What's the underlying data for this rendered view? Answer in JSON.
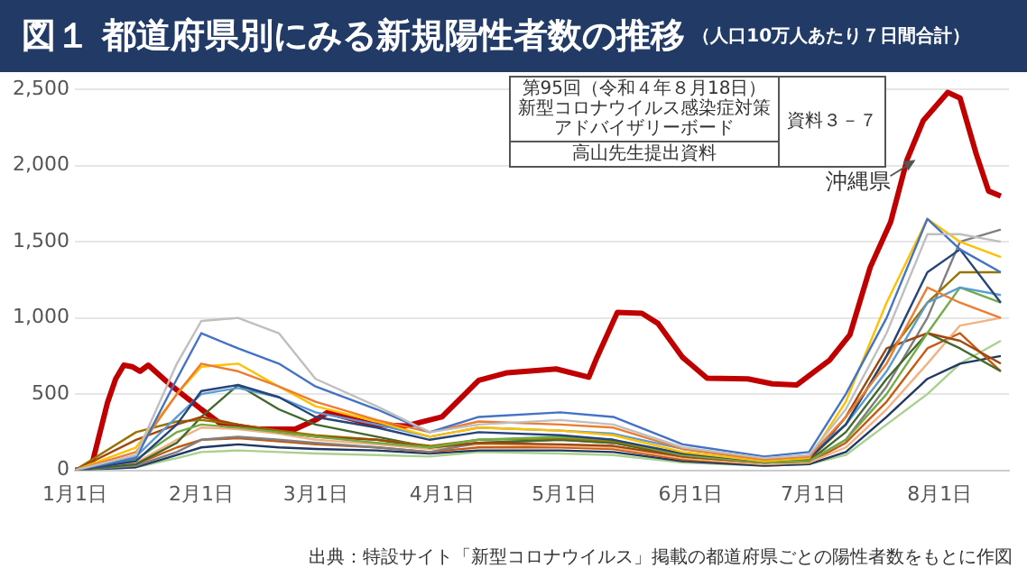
{
  "chart_data": {
    "type": "line",
    "title": "図１ 都道府県別にみる新規陽性者数の推移",
    "subtitle": "（人口10万人あたり７日間合計）",
    "x": [
      "--01-01",
      "--01-16",
      "--01-26",
      "--02-01",
      "--02-10",
      "--02-20",
      "--03-01",
      "--03-16",
      "--03-29",
      "--04-10",
      "--04-30",
      "--05-13",
      "--05-30",
      "--06-19",
      "--06-30",
      "--07-09",
      "--07-19",
      "--07-29",
      "--08-06",
      "--08-16"
    ],
    "xlim": [
      "--01-01",
      "--08-18"
    ],
    "xticks": [
      {
        "value": "--01-01",
        "label": "1月1日"
      },
      {
        "value": "--02-01",
        "label": "2月1日"
      },
      {
        "value": "--03-01",
        "label": "3月1日"
      },
      {
        "value": "--04-01",
        "label": "4月1日"
      },
      {
        "value": "--05-01",
        "label": "5月1日"
      },
      {
        "value": "--06-01",
        "label": "6月1日"
      },
      {
        "value": "--07-01",
        "label": "7月1日"
      },
      {
        "value": "--08-01",
        "label": "8月1日"
      }
    ],
    "ylim": [
      0,
      2500
    ],
    "yticks": [
      {
        "value": 0,
        "label": "0"
      },
      {
        "value": 500,
        "label": "500"
      },
      {
        "value": 1000,
        "label": "1,000"
      },
      {
        "value": 1500,
        "label": "1,500"
      },
      {
        "value": 2000,
        "label": "2,000"
      },
      {
        "value": 2500,
        "label": "2,500"
      }
    ],
    "grid": "y",
    "legend": false,
    "marker": "none",
    "line_style": "solid",
    "series": [
      {
        "color": "#bfbfbf",
        "values": [
          0,
          100,
          700,
          980,
          1000,
          900,
          600,
          420,
          250,
          300,
          330,
          300,
          150,
          80,
          100,
          400,
          900,
          1550,
          1550,
          1500
        ]
      },
      {
        "color": "#4472c4",
        "values": [
          0,
          80,
          600,
          900,
          800,
          700,
          550,
          400,
          250,
          350,
          380,
          350,
          170,
          90,
          120,
          500,
          1000,
          1650,
          1450,
          1300
        ]
      },
      {
        "color": "#ed7d31",
        "values": [
          0,
          120,
          500,
          700,
          650,
          550,
          450,
          330,
          250,
          320,
          300,
          280,
          140,
          70,
          90,
          350,
          700,
          1200,
          1100,
          1000
        ]
      },
      {
        "color": "#ffc000",
        "values": [
          0,
          150,
          500,
          680,
          700,
          550,
          420,
          320,
          220,
          280,
          260,
          230,
          120,
          60,
          80,
          450,
          1100,
          1650,
          1500,
          1400
        ]
      },
      {
        "color": "#264478",
        "values": [
          0,
          60,
          300,
          520,
          560,
          480,
          350,
          280,
          200,
          250,
          230,
          200,
          110,
          60,
          80,
          300,
          750,
          1300,
          1450,
          1100
        ]
      },
      {
        "color": "#5b9bd5",
        "values": [
          0,
          90,
          350,
          500,
          540,
          480,
          380,
          300,
          220,
          280,
          260,
          240,
          140,
          70,
          100,
          300,
          650,
          1100,
          1200,
          1150
        ]
      },
      {
        "color": "#70ad47",
        "values": [
          0,
          70,
          250,
          300,
          280,
          250,
          220,
          180,
          150,
          200,
          220,
          200,
          100,
          50,
          60,
          200,
          500,
          900,
          1200,
          1100
        ]
      },
      {
        "color": "#9e480e",
        "values": [
          0,
          200,
          300,
          350,
          300,
          250,
          220,
          200,
          150,
          180,
          170,
          160,
          90,
          50,
          60,
          350,
          800,
          900,
          850,
          700
        ]
      },
      {
        "color": "#997300",
        "values": [
          0,
          250,
          320,
          330,
          300,
          260,
          230,
          200,
          160,
          200,
          210,
          190,
          100,
          50,
          70,
          300,
          750,
          1100,
          1300,
          1300
        ]
      },
      {
        "color": "#43682b",
        "values": [
          0,
          40,
          180,
          350,
          560,
          400,
          300,
          220,
          150,
          180,
          200,
          180,
          90,
          50,
          60,
          250,
          600,
          900,
          800,
          650
        ]
      },
      {
        "color": "#7f7f7f",
        "values": [
          0,
          30,
          120,
          200,
          220,
          200,
          180,
          150,
          120,
          180,
          200,
          180,
          100,
          50,
          60,
          200,
          550,
          1000,
          1500,
          1580
        ]
      },
      {
        "color": "#f4b183",
        "values": [
          0,
          50,
          200,
          280,
          270,
          240,
          200,
          170,
          140,
          170,
          160,
          150,
          80,
          40,
          50,
          150,
          400,
          700,
          950,
          1000
        ]
      },
      {
        "color": "#c55a11",
        "values": [
          0,
          40,
          150,
          200,
          210,
          190,
          170,
          150,
          120,
          150,
          150,
          140,
          70,
          40,
          50,
          180,
          450,
          800,
          900,
          650
        ]
      },
      {
        "color": "#1f3864",
        "values": [
          0,
          20,
          100,
          150,
          170,
          150,
          140,
          130,
          110,
          130,
          130,
          120,
          60,
          30,
          40,
          120,
          350,
          600,
          700,
          750
        ]
      },
      {
        "color": "#a9d18e",
        "values": [
          0,
          20,
          80,
          120,
          130,
          120,
          110,
          100,
          90,
          120,
          110,
          100,
          50,
          30,
          40,
          100,
          300,
          500,
          700,
          850
        ]
      },
      {
        "color": "#c00000",
        "x": [
          "--01-01",
          "--01-05",
          "--01-09",
          "--01-11",
          "--01-13",
          "--01-15",
          "--01-17",
          "--01-19",
          "--01-24",
          "--02-01",
          "--02-06",
          "--02-15",
          "--02-24",
          "--03-01",
          "--03-04",
          "--03-15",
          "--03-23",
          "--04-01",
          "--04-10",
          "--04-17",
          "--04-29",
          "--05-07",
          "--05-09",
          "--05-14",
          "--05-20",
          "--05-24",
          "--05-30",
          "--06-05",
          "--06-15",
          "--06-21",
          "--06-27",
          "--07-05",
          "--07-10",
          "--07-15",
          "--07-20",
          "--07-24",
          "--07-28",
          "--08-03",
          "--08-06",
          "--08-10",
          "--08-13",
          "--08-16"
        ],
        "values": [
          0,
          20,
          444,
          600,
          690,
          680,
          650,
          690,
          570,
          400,
          300,
          270,
          270,
          330,
          380,
          300,
          290,
          350,
          590,
          640,
          665,
          611,
          741,
          1037,
          1030,
          963,
          741,
          604,
          600,
          567,
          560,
          722,
          889,
          1333,
          1630,
          2037,
          2296,
          2481,
          2444,
          2074,
          1833,
          1800
        ]
      }
    ],
    "annotations": [
      {
        "text": "沖縄県",
        "x": "--07-27",
        "y": 2050
      },
      "第95回（令和４年８月18日）",
      "新型コロナウイルス感染症対策",
      "アドバイザリーボード",
      "資料３－７",
      "高山先生提出資料",
      "出典：特設サイト「新型コロナウイルス」掲載の都道府県ごとの陽性者数をもとに作図"
    ]
  }
}
